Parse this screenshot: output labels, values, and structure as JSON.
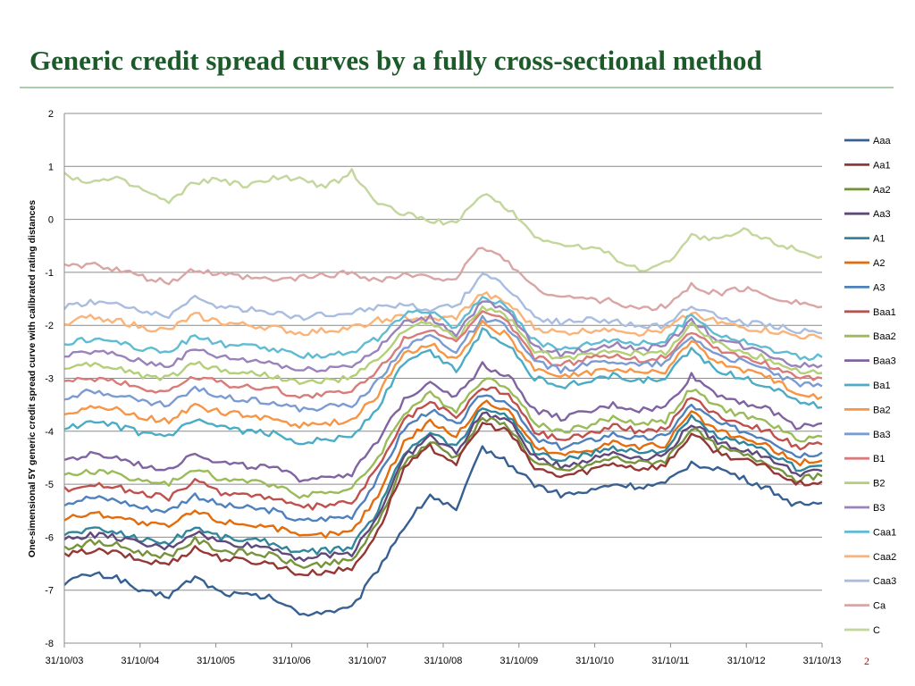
{
  "slide": {
    "title": "Generic credit spread curves by a fully cross-sectional method",
    "page_number": "2"
  },
  "chart_data": {
    "type": "line",
    "title": "",
    "xlabel": "",
    "ylabel": "One-simensional 5Y generic credit spread curve with calibrated  rating distances",
    "ylim": [
      -8,
      2
    ],
    "yticks": [
      -8,
      -7,
      -6,
      -5,
      -4,
      -3,
      -2,
      -1,
      0,
      1,
      2
    ],
    "grid": true,
    "legend_position": "right",
    "x_tick_labels": [
      "31/10/03",
      "31/10/04",
      "31/10/05",
      "31/10/06",
      "31/10/07",
      "31/10/08",
      "31/10/09",
      "31/10/10",
      "31/10/11",
      "31/10/12",
      "31/10/13"
    ],
    "series": [
      {
        "name": "Aaa",
        "color": "#376092",
        "values": [
          -6.85,
          -6.7,
          -6.75,
          -7.05,
          -7.1,
          -6.75,
          -7.05,
          -7.1,
          -7.15,
          -7.45,
          -7.4,
          -7.35,
          -6.6,
          -5.8,
          -5.2,
          -5.5,
          -4.3,
          -4.6,
          -5.0,
          -5.2,
          -5.15,
          -5.0,
          -5.05,
          -5.0,
          -4.6,
          -4.7,
          -4.9,
          -5.1,
          -5.4,
          -5.35
        ]
      },
      {
        "name": "Aa1",
        "color": "#953735",
        "values": [
          -6.35,
          -6.25,
          -6.3,
          -6.45,
          -6.5,
          -6.2,
          -6.4,
          -6.45,
          -6.5,
          -6.7,
          -6.65,
          -6.6,
          -5.9,
          -4.7,
          -4.3,
          -4.6,
          -3.85,
          -4.0,
          -4.7,
          -4.85,
          -4.75,
          -4.6,
          -4.7,
          -4.65,
          -4.05,
          -4.4,
          -4.55,
          -4.7,
          -5.0,
          -4.95
        ]
      },
      {
        "name": "Aa2",
        "color": "#77933c",
        "values": [
          -6.2,
          -6.1,
          -6.15,
          -6.3,
          -6.35,
          -6.05,
          -6.25,
          -6.3,
          -6.35,
          -6.55,
          -6.5,
          -6.45,
          -5.75,
          -4.6,
          -4.2,
          -4.5,
          -3.75,
          -3.9,
          -4.6,
          -4.75,
          -4.65,
          -4.5,
          -4.6,
          -4.55,
          -3.95,
          -4.3,
          -4.45,
          -4.6,
          -4.9,
          -4.85
        ]
      },
      {
        "name": "Aa3",
        "color": "#5f497a",
        "values": [
          -6.05,
          -5.95,
          -6.0,
          -6.15,
          -6.2,
          -5.9,
          -6.1,
          -6.15,
          -6.2,
          -6.4,
          -6.35,
          -6.3,
          -5.6,
          -4.5,
          -4.1,
          -4.4,
          -3.65,
          -3.8,
          -4.5,
          -4.65,
          -4.55,
          -4.4,
          -4.5,
          -4.45,
          -3.85,
          -4.2,
          -4.35,
          -4.5,
          -4.8,
          -4.75
        ]
      },
      {
        "name": "A1",
        "color": "#31859c",
        "values": [
          -5.95,
          -5.85,
          -5.9,
          -6.05,
          -6.1,
          -5.8,
          -6.0,
          -6.05,
          -6.1,
          -6.3,
          -6.25,
          -6.2,
          -5.5,
          -4.4,
          -4.0,
          -4.3,
          -3.55,
          -3.7,
          -4.4,
          -4.55,
          -4.45,
          -4.3,
          -4.4,
          -4.35,
          -3.75,
          -4.1,
          -4.25,
          -4.4,
          -4.7,
          -4.65
        ]
      },
      {
        "name": "A2",
        "color": "#e46c0a",
        "values": [
          -5.65,
          -5.55,
          -5.6,
          -5.75,
          -5.8,
          -5.5,
          -5.7,
          -5.75,
          -5.8,
          -6.0,
          -5.95,
          -5.9,
          -5.2,
          -4.2,
          -3.8,
          -4.1,
          -3.45,
          -3.6,
          -4.3,
          -4.45,
          -4.35,
          -4.2,
          -4.3,
          -4.25,
          -3.65,
          -4.0,
          -4.15,
          -4.3,
          -4.6,
          -4.55
        ]
      },
      {
        "name": "A3",
        "color": "#4f81bd",
        "values": [
          -5.35,
          -5.25,
          -5.3,
          -5.45,
          -5.5,
          -5.2,
          -5.4,
          -5.45,
          -5.5,
          -5.7,
          -5.65,
          -5.6,
          -4.9,
          -3.95,
          -3.6,
          -3.9,
          -3.3,
          -3.45,
          -4.15,
          -4.3,
          -4.2,
          -4.05,
          -4.15,
          -4.1,
          -3.5,
          -3.85,
          -4.0,
          -4.15,
          -4.45,
          -4.4
        ]
      },
      {
        "name": "Baa1",
        "color": "#c0504d",
        "values": [
          -5.1,
          -5.0,
          -5.05,
          -5.2,
          -5.25,
          -4.95,
          -5.15,
          -5.2,
          -5.25,
          -5.45,
          -5.4,
          -5.35,
          -4.7,
          -3.8,
          -3.45,
          -3.75,
          -3.15,
          -3.3,
          -4.0,
          -4.15,
          -4.05,
          -3.9,
          -4.0,
          -3.95,
          -3.35,
          -3.7,
          -3.85,
          -4.0,
          -4.3,
          -4.25
        ]
      },
      {
        "name": "Baa2",
        "color": "#9bbb59",
        "values": [
          -4.85,
          -4.75,
          -4.8,
          -4.95,
          -5.0,
          -4.7,
          -4.9,
          -4.95,
          -5.0,
          -5.2,
          -5.15,
          -5.1,
          -4.5,
          -3.65,
          -3.3,
          -3.6,
          -3.0,
          -3.15,
          -3.85,
          -4.0,
          -3.9,
          -3.75,
          -3.85,
          -3.8,
          -3.2,
          -3.55,
          -3.7,
          -3.85,
          -4.15,
          -4.1
        ]
      },
      {
        "name": "Baa3",
        "color": "#8064a2",
        "values": [
          -4.55,
          -4.45,
          -4.5,
          -4.65,
          -4.7,
          -4.4,
          -4.6,
          -4.65,
          -4.7,
          -4.9,
          -4.85,
          -4.8,
          -4.2,
          -3.4,
          -3.05,
          -3.35,
          -2.75,
          -2.95,
          -3.6,
          -3.75,
          -3.65,
          -3.5,
          -3.6,
          -3.55,
          -2.95,
          -3.3,
          -3.45,
          -3.6,
          -3.9,
          -3.85
        ]
      },
      {
        "name": "Ba1",
        "color": "#4bacc6",
        "values": [
          -3.95,
          -3.85,
          -3.9,
          -4.05,
          -4.1,
          -3.8,
          -3.95,
          -4.0,
          -4.05,
          -4.2,
          -4.15,
          -4.1,
          -3.55,
          -2.7,
          -2.5,
          -2.85,
          -2.1,
          -2.35,
          -3.0,
          -3.15,
          -3.05,
          -2.95,
          -3.05,
          -3.0,
          -2.45,
          -2.85,
          -3.0,
          -3.15,
          -3.4,
          -3.55
        ]
      },
      {
        "name": "Ba2",
        "color": "#f79646",
        "values": [
          -3.65,
          -3.55,
          -3.6,
          -3.75,
          -3.8,
          -3.5,
          -3.65,
          -3.7,
          -3.75,
          -3.9,
          -3.85,
          -3.8,
          -3.3,
          -2.55,
          -2.35,
          -2.65,
          -1.95,
          -2.2,
          -2.85,
          -3.0,
          -2.9,
          -2.8,
          -2.9,
          -2.85,
          -2.3,
          -2.7,
          -2.85,
          -3.0,
          -3.25,
          -3.35
        ]
      },
      {
        "name": "Ba3",
        "color": "#7b9bd3",
        "values": [
          -3.35,
          -3.25,
          -3.3,
          -3.45,
          -3.5,
          -3.2,
          -3.35,
          -3.4,
          -3.45,
          -3.6,
          -3.55,
          -3.5,
          -3.05,
          -2.4,
          -2.2,
          -2.5,
          -1.85,
          -2.05,
          -2.7,
          -2.85,
          -2.75,
          -2.65,
          -2.75,
          -2.7,
          -2.2,
          -2.55,
          -2.7,
          -2.85,
          -3.1,
          -3.15
        ]
      },
      {
        "name": "B1",
        "color": "#d87b79",
        "values": [
          -3.1,
          -3.0,
          -3.05,
          -3.2,
          -3.25,
          -2.95,
          -3.1,
          -3.15,
          -3.2,
          -3.35,
          -3.3,
          -3.25,
          -2.85,
          -2.25,
          -2.05,
          -2.35,
          -1.75,
          -1.95,
          -2.6,
          -2.75,
          -2.65,
          -2.55,
          -2.65,
          -2.6,
          -2.1,
          -2.45,
          -2.6,
          -2.75,
          -2.95,
          -3.0
        ]
      },
      {
        "name": "B2",
        "color": "#b3cf78",
        "values": [
          -2.85,
          -2.75,
          -2.8,
          -2.95,
          -3.0,
          -2.7,
          -2.85,
          -2.9,
          -2.95,
          -3.1,
          -3.05,
          -3.0,
          -2.65,
          -2.1,
          -1.95,
          -2.25,
          -1.65,
          -1.85,
          -2.5,
          -2.65,
          -2.55,
          -2.45,
          -2.55,
          -2.5,
          -2.0,
          -2.35,
          -2.5,
          -2.65,
          -2.85,
          -2.9
        ]
      },
      {
        "name": "B3",
        "color": "#9a82ba",
        "values": [
          -2.6,
          -2.5,
          -2.55,
          -2.7,
          -2.75,
          -2.45,
          -2.6,
          -2.65,
          -2.7,
          -2.85,
          -2.8,
          -2.75,
          -2.45,
          -1.95,
          -1.85,
          -2.15,
          -1.55,
          -1.75,
          -2.4,
          -2.55,
          -2.45,
          -2.35,
          -2.45,
          -2.4,
          -1.9,
          -2.25,
          -2.4,
          -2.55,
          -2.75,
          -2.75
        ]
      },
      {
        "name": "Caa1",
        "color": "#5fbcd3",
        "values": [
          -2.35,
          -2.25,
          -2.3,
          -2.45,
          -2.5,
          -2.2,
          -2.35,
          -2.4,
          -2.45,
          -2.6,
          -2.55,
          -2.5,
          -2.25,
          -1.8,
          -1.75,
          -2.05,
          -1.45,
          -1.65,
          -2.3,
          -2.45,
          -2.35,
          -2.25,
          -2.35,
          -2.3,
          -1.8,
          -2.15,
          -2.3,
          -2.45,
          -2.6,
          -2.6
        ]
      },
      {
        "name": "Caa2",
        "color": "#fab47a",
        "values": [
          -1.95,
          -1.85,
          -1.9,
          -2.05,
          -2.1,
          -1.8,
          -1.95,
          -2.0,
          -2.05,
          -2.15,
          -2.1,
          -2.05,
          -1.9,
          -1.85,
          -1.9,
          -1.85,
          -1.4,
          -1.6,
          -2.05,
          -2.15,
          -2.1,
          -2.05,
          -2.15,
          -2.1,
          -1.75,
          -1.95,
          -2.05,
          -2.1,
          -2.2,
          -2.25
        ]
      },
      {
        "name": "Caa3",
        "color": "#a9bddf",
        "values": [
          -1.65,
          -1.55,
          -1.6,
          -1.75,
          -1.8,
          -1.5,
          -1.65,
          -1.7,
          -1.75,
          -1.85,
          -1.8,
          -1.75,
          -1.65,
          -1.6,
          -1.7,
          -1.65,
          -1.0,
          -1.3,
          -1.85,
          -1.95,
          -1.9,
          -1.9,
          -2.05,
          -2.0,
          -1.6,
          -1.85,
          -1.95,
          -2.0,
          -2.1,
          -2.15
        ]
      },
      {
        "name": "Ca",
        "color": "#d9a6a5",
        "values": [
          -0.9,
          -0.85,
          -0.95,
          -1.1,
          -1.2,
          -0.95,
          -1.05,
          -1.1,
          -1.15,
          -1.1,
          -1.05,
          -1.0,
          -1.15,
          -1.05,
          -1.1,
          -1.1,
          -0.5,
          -0.8,
          -1.3,
          -1.45,
          -1.5,
          -1.55,
          -1.7,
          -1.65,
          -1.25,
          -1.4,
          -1.3,
          -1.45,
          -1.55,
          -1.65
        ]
      },
      {
        "name": "C",
        "color": "#c3d69b",
        "values": [
          0.85,
          0.7,
          0.75,
          0.55,
          0.3,
          0.7,
          0.75,
          0.6,
          0.8,
          0.75,
          0.6,
          0.9,
          0.3,
          0.1,
          0.0,
          -0.1,
          0.5,
          0.2,
          -0.3,
          -0.5,
          -0.5,
          -0.7,
          -0.95,
          -0.85,
          -0.3,
          -0.4,
          -0.2,
          -0.4,
          -0.55,
          -0.7
        ]
      }
    ]
  }
}
